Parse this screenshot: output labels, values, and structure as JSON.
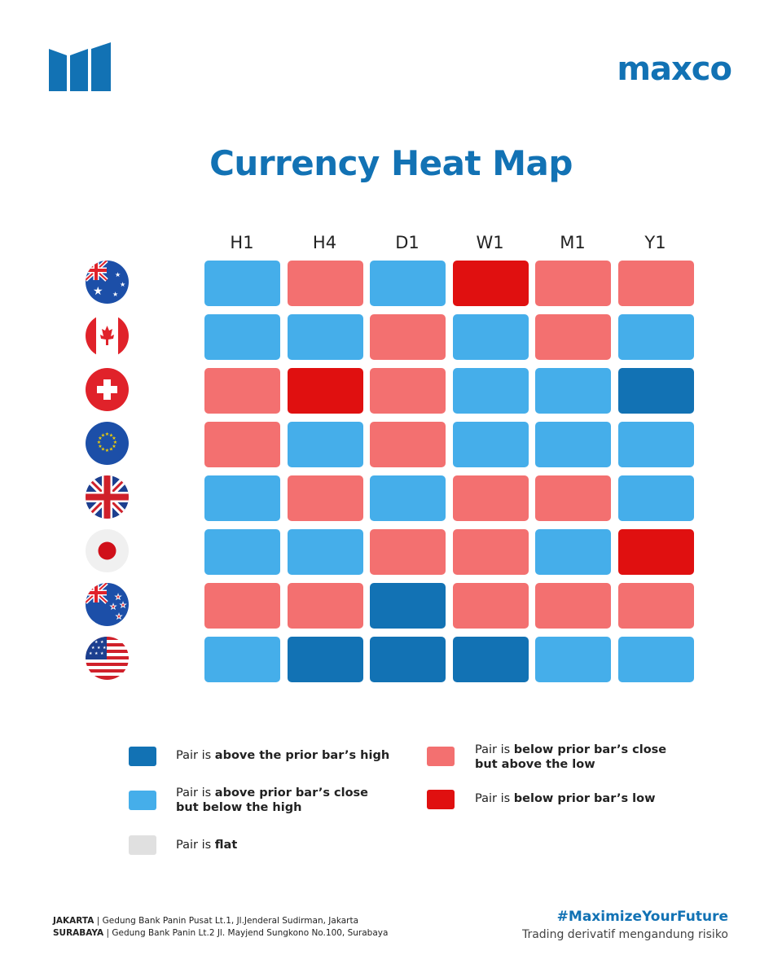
{
  "brand": {
    "name_left": "ma",
    "name_x": "x",
    "name_right": "co"
  },
  "title": "Currency Heat Map",
  "colors": {
    "above_high": "#1272b4",
    "above_close": "#45aeea",
    "flat": "#e0e0e0",
    "below_close": "#f37070",
    "below_low": "#e01010",
    "brand": "#1272b4"
  },
  "chart_data": {
    "type": "heatmap",
    "columns": [
      "H1",
      "H4",
      "D1",
      "W1",
      "M1",
      "Y1"
    ],
    "rows": [
      "AUD",
      "CAD",
      "CHF",
      "EUR",
      "GBP",
      "JPY",
      "NZD",
      "USD"
    ],
    "row_icons": [
      "australia-flag-icon",
      "canada-flag-icon",
      "switzerland-flag-icon",
      "eu-flag-icon",
      "uk-flag-icon",
      "japan-flag-icon",
      "new-zealand-flag-icon",
      "usa-flag-icon"
    ],
    "values": [
      [
        "above_close",
        "below_close",
        "above_close",
        "below_low",
        "below_close",
        "below_close"
      ],
      [
        "above_close",
        "above_close",
        "below_close",
        "above_close",
        "below_close",
        "above_close"
      ],
      [
        "below_close",
        "below_low",
        "below_close",
        "above_close",
        "above_close",
        "above_high"
      ],
      [
        "below_close",
        "above_close",
        "below_close",
        "above_close",
        "above_close",
        "above_close"
      ],
      [
        "above_close",
        "below_close",
        "above_close",
        "below_close",
        "below_close",
        "above_close"
      ],
      [
        "above_close",
        "above_close",
        "below_close",
        "below_close",
        "above_close",
        "below_low"
      ],
      [
        "below_close",
        "below_close",
        "above_high",
        "below_close",
        "below_close",
        "below_close"
      ],
      [
        "above_close",
        "above_high",
        "above_high",
        "above_high",
        "above_close",
        "above_close"
      ]
    ]
  },
  "legend": {
    "above_high": {
      "pre": "Pair is ",
      "bold": "above the prior bar’s high",
      "line2": ""
    },
    "above_close": {
      "pre": "Pair is ",
      "bold": "above prior bar’s close",
      "line2": "but below the high"
    },
    "flat": {
      "pre": "Pair is ",
      "bold": "flat",
      "line2": ""
    },
    "below_close": {
      "pre": "Pair is ",
      "bold": "below prior bar’s close",
      "line2": "but above the low"
    },
    "below_low": {
      "pre": "Pair is ",
      "bold": "below prior bar’s low",
      "line2": ""
    }
  },
  "footer": {
    "jakarta_label": "JAKARTA",
    "jakarta_address": " | Gedung Bank Panin Pusat Lt.1, Jl.Jenderal Sudirman, Jakarta",
    "surabaya_label": "SURABAYA",
    "surabaya_address": " | Gedung Bank Panin Lt.2 Jl. Mayjend Sungkono No.100, Surabaya",
    "hashtag": "#MaximizeYourFuture",
    "disclaimer": "Trading derivatif mengandung risiko"
  }
}
